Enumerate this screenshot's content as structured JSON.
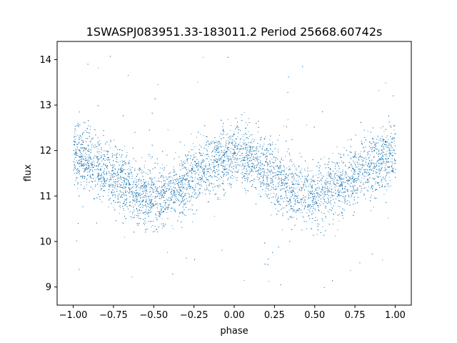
{
  "chart_data": {
    "type": "scatter",
    "title": "1SWASPJ083951.33-183011.2 Period 25668.60742s",
    "xlabel": "phase",
    "ylabel": "flux",
    "xlim": [
      -1.1,
      1.1
    ],
    "ylim": [
      8.6,
      14.4
    ],
    "x_ticks": [
      -1.0,
      -0.75,
      -0.5,
      -0.25,
      0.0,
      0.25,
      0.5,
      0.75,
      1.0
    ],
    "x_tick_labels": [
      "−1.00",
      "−0.75",
      "−0.50",
      "−0.25",
      "0.00",
      "0.25",
      "0.50",
      "0.75",
      "1.00"
    ],
    "y_ticks": [
      9,
      10,
      11,
      12,
      13,
      14
    ],
    "y_tick_labels": [
      "9",
      "10",
      "11",
      "12",
      "13",
      "14"
    ],
    "grid": false,
    "legend": "none",
    "marker_color": "#1f77b4",
    "series": [
      {
        "name": "",
        "description_points": "dense phase-folded light curve, approximately sinusoidal with two cycles over phase -1 to 1",
        "x": [
          -1.0,
          -0.875,
          -0.75,
          -0.625,
          -0.5,
          -0.375,
          -0.25,
          -0.125,
          0.0,
          0.125,
          0.25,
          0.375,
          0.5,
          0.625,
          0.75,
          0.875,
          1.0
        ],
        "y": [
          11.9,
          11.75,
          11.45,
          11.15,
          10.95,
          11.15,
          11.45,
          11.75,
          11.9,
          11.75,
          11.45,
          11.15,
          10.95,
          11.15,
          11.45,
          11.75,
          11.9
        ],
        "scatter_sigma": 0.35,
        "outlier_range": [
          8.9,
          14.2
        ]
      }
    ]
  }
}
